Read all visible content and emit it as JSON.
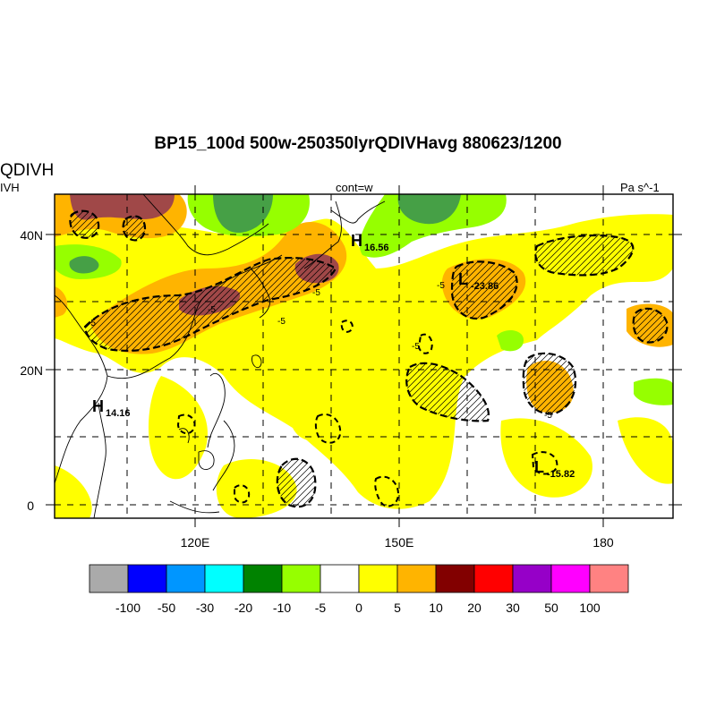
{
  "title": "BP15_100d 500w-250350lyrQDIVHavg  880623/1200",
  "left_label": "QDIVH",
  "left_sublabel": "IVH",
  "center_label": "cont=w",
  "right_label": "Pa s^-1",
  "map": {
    "lat_ticks": [
      {
        "label": "40N",
        "lat": 40
      },
      {
        "label": "20N",
        "lat": 20
      },
      {
        "label": "0",
        "lat": 0
      }
    ],
    "lon_ticks": [
      {
        "label": "120E",
        "lon": 120
      },
      {
        "label": "150E",
        "lon": 150
      },
      {
        "label": "180",
        "lon": 180
      }
    ],
    "pressure_labels": [
      {
        "text": "H",
        "sub": "16.56"
      },
      {
        "text": "L",
        "sub": "-23.86"
      },
      {
        "text": "H",
        "sub": "14.16"
      },
      {
        "text": "L",
        "sub": "-15.82"
      }
    ],
    "contour_labels": [
      "-5",
      "-5",
      "-5",
      "-5",
      "-5",
      "-5",
      "-5"
    ]
  },
  "colorbar": {
    "colors": [
      "#aaaaaa",
      "#0000ff",
      "#0096ff",
      "#00ffff",
      "#008200",
      "#96ff00",
      "#ffffff",
      "#ffff00",
      "#ffb400",
      "#820000",
      "#ff0000",
      "#9600c8",
      "#ff00ff",
      "#ff8282"
    ],
    "labels": [
      "-100",
      "-50",
      "-30",
      "-20",
      "-10",
      "-5",
      "0",
      "5",
      "10",
      "20",
      "30",
      "50",
      "100"
    ]
  }
}
